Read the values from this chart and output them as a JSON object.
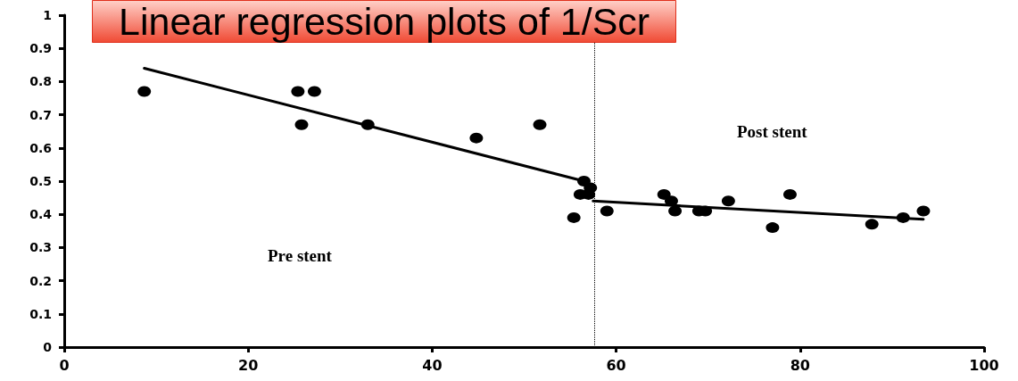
{
  "chart_data": {
    "type": "scatter",
    "title": "Linear regression plots of 1/Scr",
    "annotations": [
      "Pre stent",
      "Post stent"
    ],
    "xlim": [
      0,
      100
    ],
    "xticks": [
      0,
      20,
      40,
      60,
      80,
      100
    ],
    "ylim": [
      0,
      1
    ],
    "yticks": [
      0,
      0.1,
      0.2,
      0.3,
      0.4,
      0.5,
      0.6,
      0.7,
      0.8,
      0.9,
      1
    ],
    "grid": false,
    "marker": "circle",
    "ref_lines": [
      {
        "axis": "x",
        "value": 57.6,
        "line_style": "dotted",
        "color": "#000000"
      }
    ],
    "series": [
      {
        "color": "#000000",
        "x": [
          8.7,
          25.4,
          27.2,
          25.8,
          33.0,
          44.8,
          51.7,
          56.5,
          57.2,
          56.1,
          57.0,
          55.4,
          59.0,
          65.2,
          66.0,
          66.4,
          69.0,
          69.7,
          72.2,
          77.0,
          78.9,
          87.8,
          91.2,
          93.4
        ],
        "values": [
          0.77,
          0.77,
          0.77,
          0.67,
          0.67,
          0.63,
          0.67,
          0.5,
          0.48,
          0.46,
          0.46,
          0.39,
          0.41,
          0.46,
          0.44,
          0.41,
          0.41,
          0.41,
          0.44,
          0.36,
          0.46,
          0.37,
          0.39,
          0.41
        ]
      },
      {
        "type": "line",
        "color": "#000000",
        "marker": "none",
        "line_style": "solid",
        "x": [
          8.7,
          56.5
        ],
        "values": [
          0.84,
          0.5
        ]
      },
      {
        "type": "line",
        "color": "#000000",
        "marker": "none",
        "line_style": "solid",
        "x": [
          57.5,
          93.4
        ],
        "values": [
          0.44,
          0.385
        ]
      }
    ]
  }
}
